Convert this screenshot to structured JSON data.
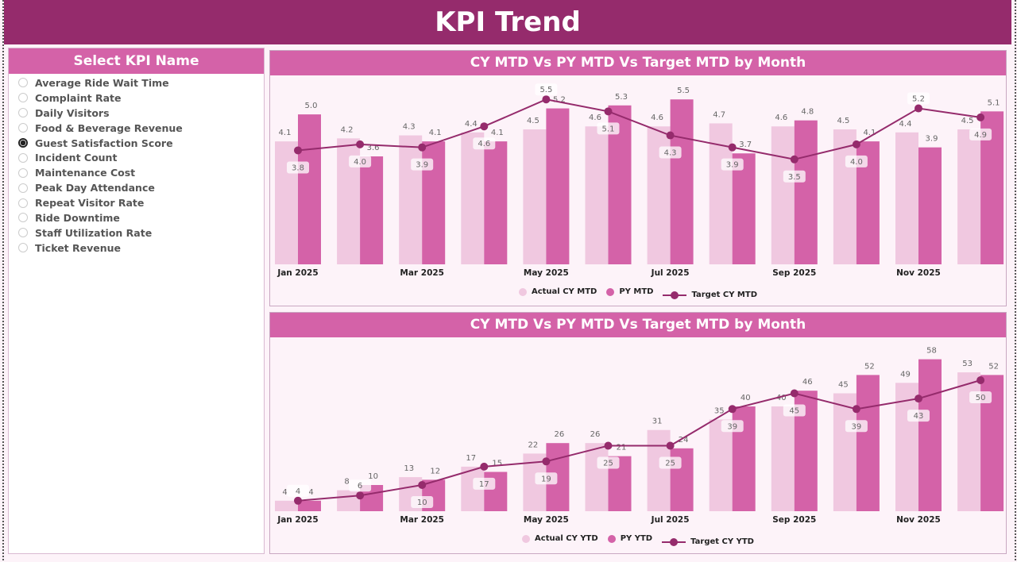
{
  "header": {
    "title": "KPI Trend"
  },
  "slicer": {
    "title": "Select KPI Name",
    "selected": "Guest Satisfaction Score",
    "items": [
      "Average Ride Wait Time",
      "Complaint Rate",
      "Daily Visitors",
      "Food & Beverage Revenue",
      "Guest Satisfaction Score",
      "Incident Count",
      "Maintenance Cost",
      "Peak Day Attendance",
      "Repeat Visitor Rate",
      "Ride Downtime",
      "Staff Utilization Rate",
      "Ticket Revenue"
    ]
  },
  "colors": {
    "header": "#952b6c",
    "accent": "#d462a8",
    "actual": "#f0c8e0",
    "py": "#d462a8",
    "target": "#952b6c"
  },
  "chart_data": [
    {
      "type": "bar",
      "title": "CY MTD Vs PY MTD Vs Target MTD by Month",
      "categories": [
        "Jan 2025",
        "Feb 2025",
        "Mar 2025",
        "Apr 2025",
        "May 2025",
        "Jun 2025",
        "Jul 2025",
        "Aug 2025",
        "Sep 2025",
        "Oct 2025",
        "Nov 2025",
        "Dec 2025"
      ],
      "tick_labels": [
        "Jan 2025",
        "Mar 2025",
        "May 2025",
        "Jul 2025",
        "Sep 2025",
        "Nov 2025"
      ],
      "series": [
        {
          "name": "Actual CY MTD",
          "type": "bar",
          "values": [
            4.1,
            4.2,
            4.3,
            4.4,
            4.5,
            4.6,
            4.6,
            4.7,
            4.6,
            4.5,
            4.4,
            4.5
          ]
        },
        {
          "name": "PY MTD",
          "type": "bar",
          "values": [
            5.0,
            3.6,
            4.1,
            4.1,
            5.2,
            5.3,
            5.5,
            3.7,
            4.8,
            4.1,
            3.9,
            5.1
          ]
        },
        {
          "name": "Target CY MTD",
          "type": "line",
          "values": [
            3.8,
            4.0,
            3.9,
            4.6,
            5.5,
            5.1,
            4.3,
            3.9,
            3.5,
            4.0,
            5.2,
            4.9
          ]
        }
      ],
      "ylim": [
        0,
        6.3
      ],
      "decimals": 1,
      "legend": "bottom"
    },
    {
      "type": "bar",
      "title": "CY MTD Vs PY MTD Vs Target MTD by Month",
      "categories": [
        "Jan 2025",
        "Feb 2025",
        "Mar 2025",
        "Apr 2025",
        "May 2025",
        "Jun 2025",
        "Jul 2025",
        "Aug 2025",
        "Sep 2025",
        "Oct 2025",
        "Nov 2025",
        "Dec 2025"
      ],
      "tick_labels": [
        "Jan 2025",
        "Mar 2025",
        "May 2025",
        "Jul 2025",
        "Sep 2025",
        "Nov 2025"
      ],
      "series": [
        {
          "name": "Actual CY YTD",
          "type": "bar",
          "values": [
            4,
            8,
            13,
            17,
            22,
            26,
            31,
            35,
            40,
            45,
            49,
            53
          ]
        },
        {
          "name": "PY YTD",
          "type": "bar",
          "values": [
            4,
            10,
            12,
            15,
            26,
            21,
            24,
            40,
            46,
            52,
            58,
            52
          ]
        },
        {
          "name": "Target CY YTD",
          "type": "line",
          "values": [
            4,
            6,
            10,
            17,
            19,
            25,
            25,
            39,
            45,
            39,
            43,
            50
          ]
        }
      ],
      "ylim": [
        0,
        65
      ],
      "decimals": 0,
      "legend": "bottom"
    }
  ]
}
